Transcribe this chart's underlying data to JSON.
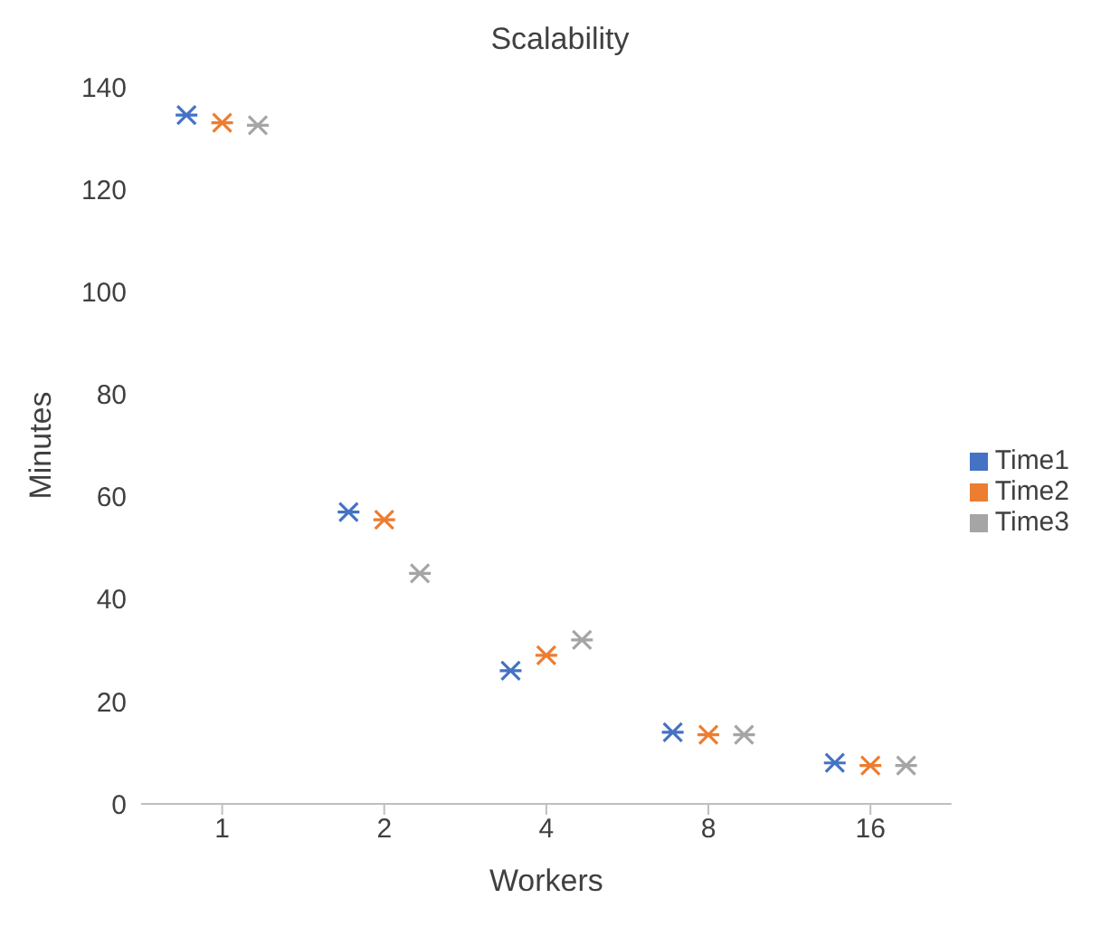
{
  "chart_data": {
    "type": "scatter",
    "title": "Scalability",
    "xlabel": "Workers",
    "ylabel": "Minutes",
    "categories": [
      "1",
      "2",
      "4",
      "8",
      "16"
    ],
    "series": [
      {
        "name": "Time1",
        "color": "#4472c4",
        "values": [
          134.5,
          57,
          26,
          14,
          8
        ]
      },
      {
        "name": "Time2",
        "color": "#ed7d31",
        "values": [
          133,
          55.5,
          29,
          13.5,
          7.5
        ]
      },
      {
        "name": "Time3",
        "color": "#a5a5a5",
        "values": [
          132.5,
          45,
          32,
          13.5,
          7.5
        ]
      }
    ],
    "ylim": [
      0,
      140
    ],
    "yticks": [
      0,
      20,
      40,
      60,
      80,
      100,
      120,
      140
    ],
    "grid": false,
    "legend": "right",
    "marker": "cross"
  }
}
